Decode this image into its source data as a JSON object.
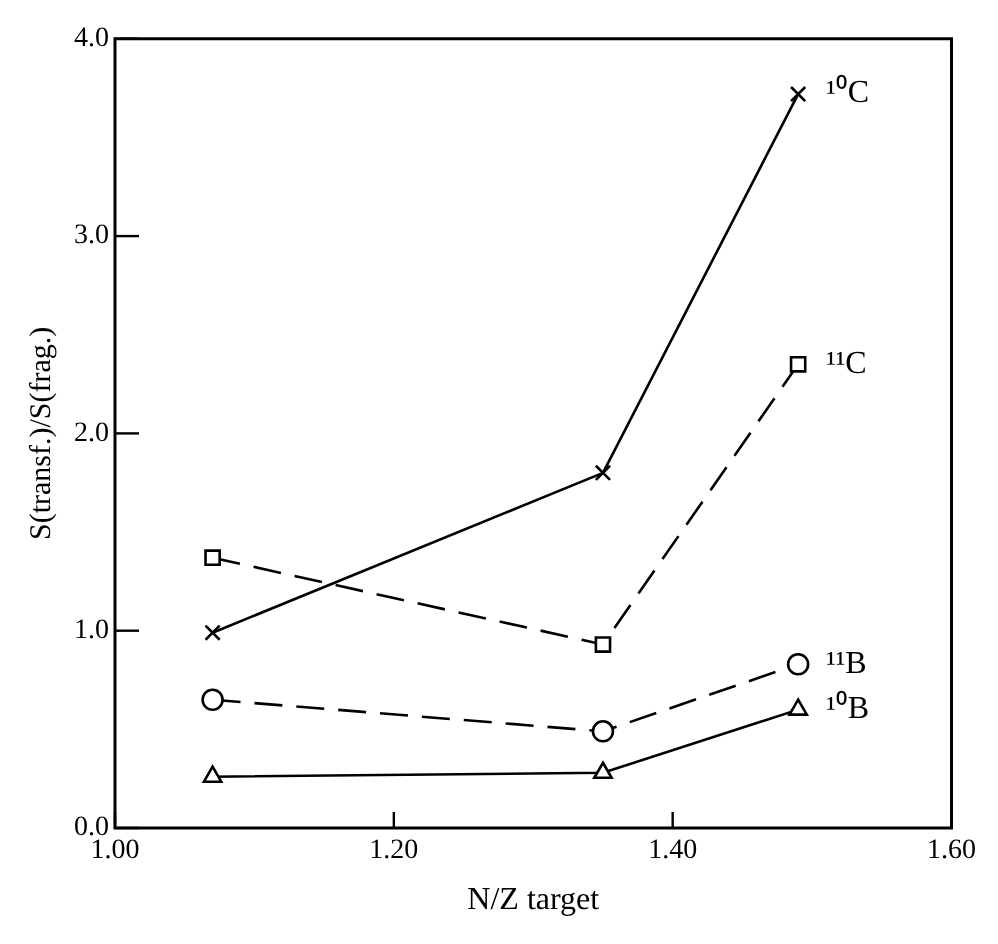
{
  "chart_data": {
    "type": "line",
    "xlabel": "N/Z target",
    "ylabel": "S(transf.)/S(frag.)",
    "x": [
      1.07,
      1.35,
      1.49
    ],
    "series": [
      {
        "name": "¹⁰C",
        "color": "#000000",
        "values": [
          0.99,
          1.8,
          3.72
        ],
        "marker": "cross",
        "line_style": "solid"
      },
      {
        "name": "¹¹C",
        "color": "#000000",
        "values": [
          1.37,
          0.93,
          2.35
        ],
        "marker": "square",
        "line_style": "dashed"
      },
      {
        "name": "¹¹B",
        "color": "#000000",
        "values": [
          0.65,
          0.49,
          0.83
        ],
        "marker": "circle",
        "line_style": "dashed"
      },
      {
        "name": "¹⁰B",
        "color": "#000000",
        "values": [
          0.26,
          0.28,
          0.6
        ],
        "marker": "triangle",
        "line_style": "solid"
      }
    ],
    "xlim": [
      1.0,
      1.6
    ],
    "ylim": [
      0,
      4
    ],
    "xticks": [
      {
        "value": 1,
        "label": "1.00"
      },
      {
        "value": 1.2,
        "label": "1.20"
      },
      {
        "value": 1.4,
        "label": "1.40"
      },
      {
        "value": 1.6,
        "label": "1.60"
      }
    ],
    "yticks": [
      {
        "value": 0,
        "label": "0.0"
      },
      {
        "value": 1,
        "label": "1.0"
      },
      {
        "value": 2,
        "label": "2.0"
      },
      {
        "value": 3,
        "label": "3.0"
      },
      {
        "value": 4,
        "label": "4.0"
      }
    ],
    "grid": false,
    "legend": false
  }
}
